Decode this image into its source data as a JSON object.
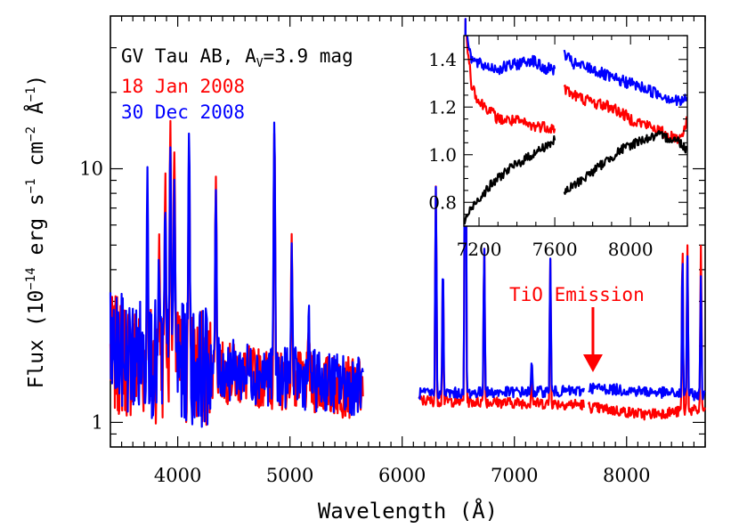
{
  "chart_data": [
    {
      "type": "line",
      "title": "",
      "xlabel": "Wavelength (Å)",
      "ylabel": "Flux (10⁻¹⁴ erg s⁻¹ cm⁻² Å⁻¹)",
      "ylabel_parts": {
        "a": "Flux (10",
        "sup1": "−14",
        "b": " erg s",
        "sup2": "−1",
        "c": " cm",
        "sup3": "−2",
        "d": " Å",
        "sup4": "−1",
        "e": ")"
      },
      "xlim": [
        3400,
        8700
      ],
      "ylim": [
        0.8,
        40
      ],
      "yscale": "log",
      "grid": false,
      "xticks": [
        4000,
        5000,
        6000,
        7000,
        8000
      ],
      "yticks": [
        1,
        10
      ],
      "annotations": {
        "object_text": "GV Tau AB, A",
        "object_sub": "V",
        "object_value": "=3.9 mag",
        "tio_label": "TiO Emission",
        "tio_arrow_x": 7700
      },
      "series": [
        {
          "name": "18 Jan 2008",
          "color": "#ff0000"
        },
        {
          "name": "30 Dec 2008",
          "color": "#0000ff"
        }
      ],
      "segments": [
        {
          "from": 3400,
          "to": 5650
        },
        {
          "from": 6150,
          "to": 7620
        },
        {
          "from": 7660,
          "to": 8700
        }
      ],
      "lines": [
        {
          "lambda": 3730,
          "red": 6.5,
          "blue": 10.0
        },
        {
          "lambda": 3835,
          "red": 5.5,
          "blue": 4.0
        },
        {
          "lambda": 3889,
          "red": 9.0,
          "blue": 7.0
        },
        {
          "lambda": 3934,
          "red": 14.5,
          "blue": 13.0
        },
        {
          "lambda": 3970,
          "red": 12.0,
          "blue": 9.0
        },
        {
          "lambda": 4101,
          "red": 12.0,
          "blue": 14.0
        },
        {
          "lambda": 4340,
          "red": 9.0,
          "blue": 8.0
        },
        {
          "lambda": 4861,
          "red": 14.0,
          "blue": 15.0
        },
        {
          "lambda": 5016,
          "red": 5.2,
          "blue": 5.0
        },
        {
          "lambda": 5169,
          "red": 2.4,
          "blue": 2.5
        },
        {
          "lambda": 6300,
          "red": 8.5,
          "blue": 8.5
        },
        {
          "lambda": 6363,
          "red": 4.3,
          "blue": 4.3
        },
        {
          "lambda": 6563,
          "red": 40.0,
          "blue": 40.0
        },
        {
          "lambda": 6731,
          "red": 5.0,
          "blue": 5.0
        },
        {
          "lambda": 7155,
          "red": 1.8,
          "blue": 1.8
        },
        {
          "lambda": 7320,
          "red": 4.4,
          "blue": 4.4
        },
        {
          "lambda": 8498,
          "red": 5.0,
          "blue": 4.5
        },
        {
          "lambda": 8542,
          "red": 5.0,
          "blue": 4.5
        },
        {
          "lambda": 8662,
          "red": 5.0,
          "blue": 3.8
        }
      ]
    },
    {
      "type": "line",
      "title": "",
      "xlim": [
        7120,
        8300
      ],
      "ylim": [
        0.7,
        1.5
      ],
      "yscale": "linear",
      "xticks": [
        7200,
        7600,
        8000
      ],
      "yticks": [
        0.8,
        1.0,
        1.2,
        1.4
      ],
      "ytick_labels": [
        "0.8",
        "1.0",
        "1.2",
        "1.4"
      ],
      "series": [
        {
          "name": "18 Jan 2008",
          "color": "#ff0000",
          "points": [
            [
              7120,
              1.6
            ],
            [
              7160,
              1.3
            ],
            [
              7200,
              1.22
            ],
            [
              7240,
              1.2
            ],
            [
              7300,
              1.15
            ],
            [
              7400,
              1.14
            ],
            [
              7480,
              1.12
            ],
            [
              7540,
              1.12
            ],
            [
              7600,
              1.11
            ],
            [
              7650,
              1.28
            ],
            [
              7700,
              1.25
            ],
            [
              7800,
              1.22
            ],
            [
              7900,
              1.2
            ],
            [
              8000,
              1.15
            ],
            [
              8100,
              1.12
            ],
            [
              8200,
              1.08
            ],
            [
              8260,
              1.07
            ],
            [
              8300,
              1.14
            ]
          ]
        },
        {
          "name": "30 Dec 2008",
          "color": "#0000ff",
          "points": [
            [
              7120,
              1.6
            ],
            [
              7160,
              1.4
            ],
            [
              7200,
              1.38
            ],
            [
              7300,
              1.36
            ],
            [
              7400,
              1.38
            ],
            [
              7480,
              1.4
            ],
            [
              7540,
              1.36
            ],
            [
              7600,
              1.36
            ],
            [
              7650,
              1.42
            ],
            [
              7700,
              1.38
            ],
            [
              7800,
              1.36
            ],
            [
              7900,
              1.32
            ],
            [
              8000,
              1.3
            ],
            [
              8100,
              1.27
            ],
            [
              8200,
              1.24
            ],
            [
              8260,
              1.22
            ],
            [
              8300,
              1.24
            ]
          ]
        },
        {
          "name": "",
          "color": "#000000",
          "points": [
            [
              7120,
              0.72
            ],
            [
              7180,
              0.8
            ],
            [
              7260,
              0.87
            ],
            [
              7340,
              0.93
            ],
            [
              7420,
              0.97
            ],
            [
              7500,
              1.01
            ],
            [
              7600,
              1.06
            ],
            [
              7650,
              0.84
            ],
            [
              7750,
              0.9
            ],
            [
              7850,
              0.96
            ],
            [
              7950,
              1.02
            ],
            [
              8050,
              1.06
            ],
            [
              8150,
              1.08
            ],
            [
              8250,
              1.06
            ],
            [
              8300,
              1.02
            ]
          ]
        }
      ]
    }
  ]
}
